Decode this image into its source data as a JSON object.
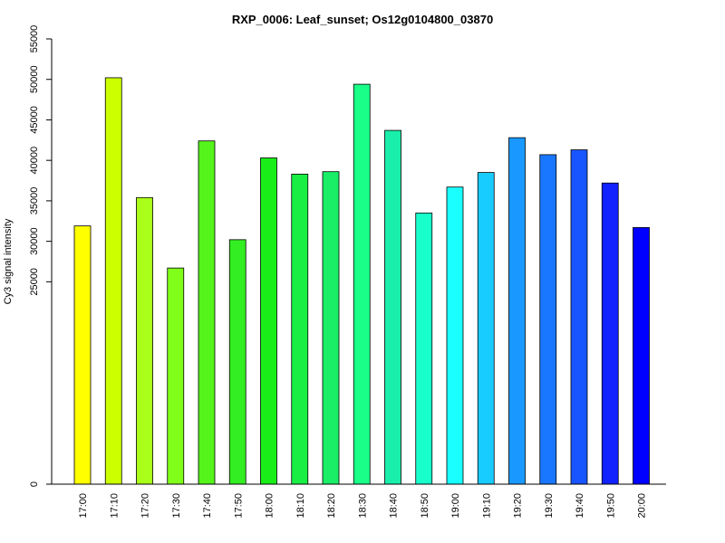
{
  "chart_data": {
    "type": "bar",
    "title": "RXP_0006: Leaf_sunset; Os12g0104800_03870",
    "xlabel": "",
    "ylabel": "Cy3 signal intensity",
    "categories": [
      "17:00",
      "17:10",
      "17:20",
      "17:30",
      "17:40",
      "17:50",
      "18:00",
      "18:10",
      "18:20",
      "18:30",
      "18:40",
      "18:50",
      "19:00",
      "19:10",
      "19:20",
      "19:30",
      "19:40",
      "19:50",
      "20:00"
    ],
    "values": [
      31900,
      50200,
      35400,
      26700,
      42400,
      30200,
      40300,
      38300,
      38600,
      49400,
      43700,
      33500,
      36700,
      38500,
      42800,
      40700,
      41300,
      37200,
      31700
    ],
    "colors": [
      "#FFFF00",
      "#CCFF00",
      "#AAFF1A",
      "#80FF1A",
      "#55F41A",
      "#33EE22",
      "#19EE19",
      "#19EE44",
      "#19EE66",
      "#19FF88",
      "#19EEAA",
      "#19FFCC",
      "#19FFFF",
      "#19CCFF",
      "#1999FF",
      "#1977FF",
      "#1955FF",
      "#1122FF",
      "#0000FF"
    ],
    "y_ticks": [
      0,
      25000,
      30000,
      35000,
      40000,
      45000,
      50000,
      55000
    ],
    "ylim": [
      0,
      55000
    ],
    "grid": false,
    "legend": "none"
  }
}
